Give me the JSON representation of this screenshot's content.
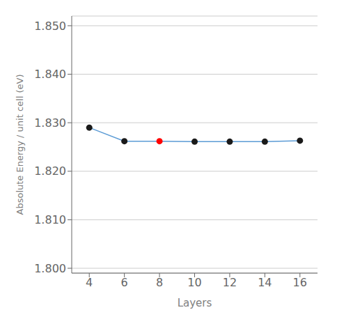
{
  "chart_data": {
    "type": "line",
    "x": [
      4,
      6,
      8,
      10,
      12,
      14,
      16
    ],
    "values": [
      1.829,
      1.8262,
      1.8262,
      1.8261,
      1.8261,
      1.8261,
      1.8263
    ],
    "color": "#5b9bd5",
    "colors": [
      "#1a1a1a",
      "#1a1a1a",
      "#ff0000",
      "#1a1a1a",
      "#1a1a1a",
      "#1a1a1a",
      "#1a1a1a"
    ],
    "marker": "circle",
    "xlabel": "Layers",
    "ylabel": "Absolute Energy / unit cell  (eV)",
    "xlim": [
      3,
      17
    ],
    "ylim": [
      1.799,
      1.852
    ],
    "xticks": [
      4,
      6,
      8,
      10,
      12,
      14,
      16
    ],
    "yticks": [
      {
        "value": 1.8,
        "label": "1.800"
      },
      {
        "value": 1.81,
        "label": "1.810"
      },
      {
        "value": 1.82,
        "label": "1.820"
      },
      {
        "value": 1.83,
        "label": "1.830"
      },
      {
        "value": 1.84,
        "label": "1.840"
      },
      {
        "value": 1.85,
        "label": "1.850"
      }
    ],
    "grid": true
  }
}
